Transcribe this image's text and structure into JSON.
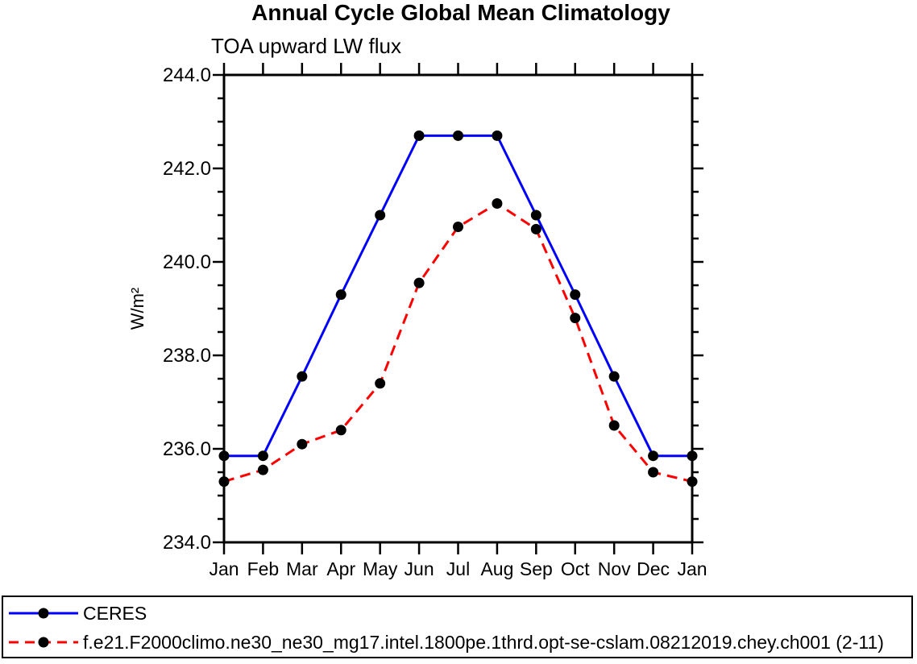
{
  "page": {
    "background": "#ffffff"
  },
  "chart_data": {
    "type": "line",
    "title": "Annual Cycle Global Mean Climatology",
    "subtitle": "TOA upward LW flux",
    "xlabel": "",
    "ylabel": "W/m²",
    "x_tick_labels": [
      "Jan",
      "Feb",
      "Mar",
      "Apr",
      "May",
      "Jun",
      "Jul",
      "Aug",
      "Sep",
      "Oct",
      "Nov",
      "Dec",
      "Jan"
    ],
    "ylim": [
      234.0,
      244.0
    ],
    "y_major_tick_values": [
      234.0,
      236.0,
      238.0,
      240.0,
      242.0,
      244.0
    ],
    "y_tick_labels": [
      "234.0",
      "236.0",
      "238.0",
      "240.0",
      "242.0",
      "244.0"
    ],
    "y_minor_step": 0.5,
    "grid": false,
    "tick_direction": "out",
    "legend_position": "bottom-left-box",
    "colors": {
      "axis": "#000000",
      "text": "#000000",
      "marker": "#000000",
      "ceres_line": "#0000ff",
      "model_line": "#ff0000"
    },
    "series": [
      {
        "name": "CERES",
        "color": "#0000ff",
        "line_style": "solid",
        "marker": "filled-circle",
        "marker_color": "#000000",
        "values": [
          235.85,
          235.85,
          237.55,
          239.3,
          241.0,
          242.7,
          242.7,
          242.7,
          241.0,
          239.3,
          237.55,
          235.85,
          235.85
        ]
      },
      {
        "name": "f.e21.F2000climo.ne30_ne30_mg17.intel.1800pe.1thrd.opt-se-cslam.08212019.chey.ch001 (2-11)",
        "color": "#ff0000",
        "line_style": "dashed",
        "marker": "filled-circle",
        "marker_color": "#000000",
        "values": [
          235.3,
          235.55,
          236.1,
          236.4,
          237.4,
          239.55,
          240.75,
          241.25,
          240.7,
          238.8,
          236.5,
          235.5,
          235.3
        ]
      }
    ]
  }
}
